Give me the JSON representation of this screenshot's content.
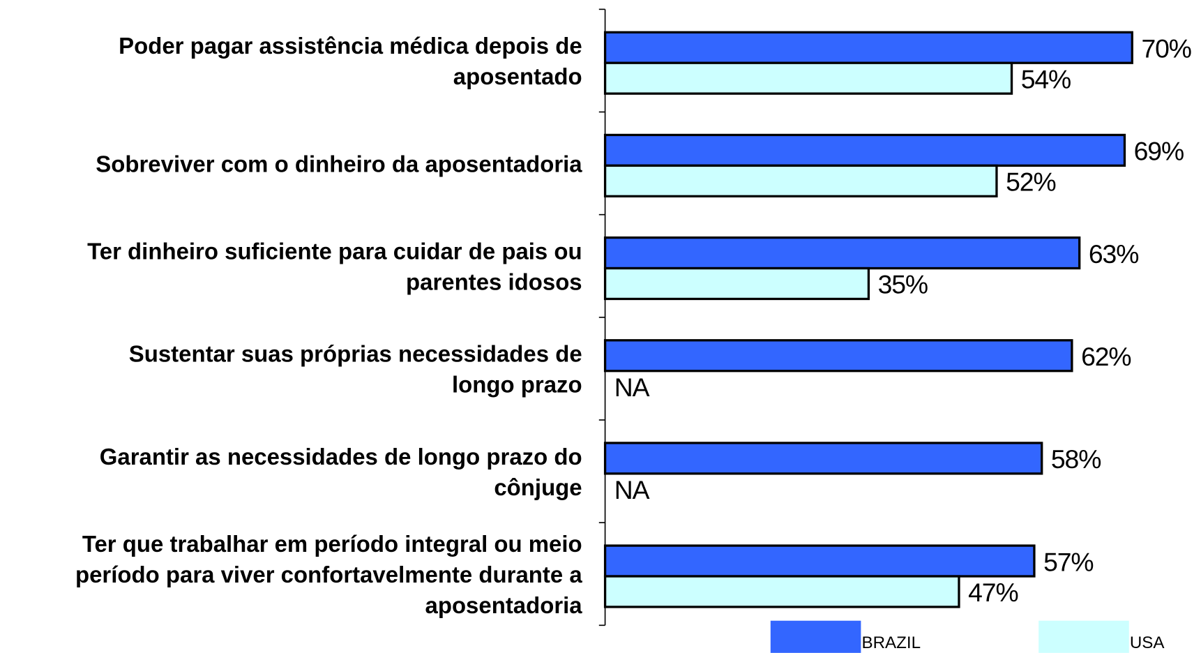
{
  "chart_data": {
    "type": "bar",
    "orientation": "horizontal",
    "categories": [
      "Poder  pagar assistência médica depois de\naposentado",
      "Sobreviver com o dinheiro da aposentadoria",
      "Ter dinheiro suficiente para cuidar de pais ou\nparentes idosos",
      "Sustentar  suas próprias necessidades de\nlongo prazo",
      "Garantir as necessidades de longo prazo do\ncônjuge ",
      "Ter que trabalhar em período integral ou meio\nperíodo para viver confortavelmente durante a\naposentadoria"
    ],
    "series": [
      {
        "name": "BRAZIL",
        "color": "#3366ff",
        "values": [
          70,
          69,
          63,
          62,
          58,
          57
        ],
        "value_labels": [
          "70%",
          "69%",
          "63%",
          "62%",
          "58%",
          "57%"
        ]
      },
      {
        "name": "USA",
        "color": "#ccffff",
        "values": [
          54,
          52,
          35,
          null,
          null,
          47
        ],
        "value_labels": [
          "54%",
          "52%",
          "35%",
          "NA",
          "NA",
          "47%"
        ]
      }
    ]
  }
}
